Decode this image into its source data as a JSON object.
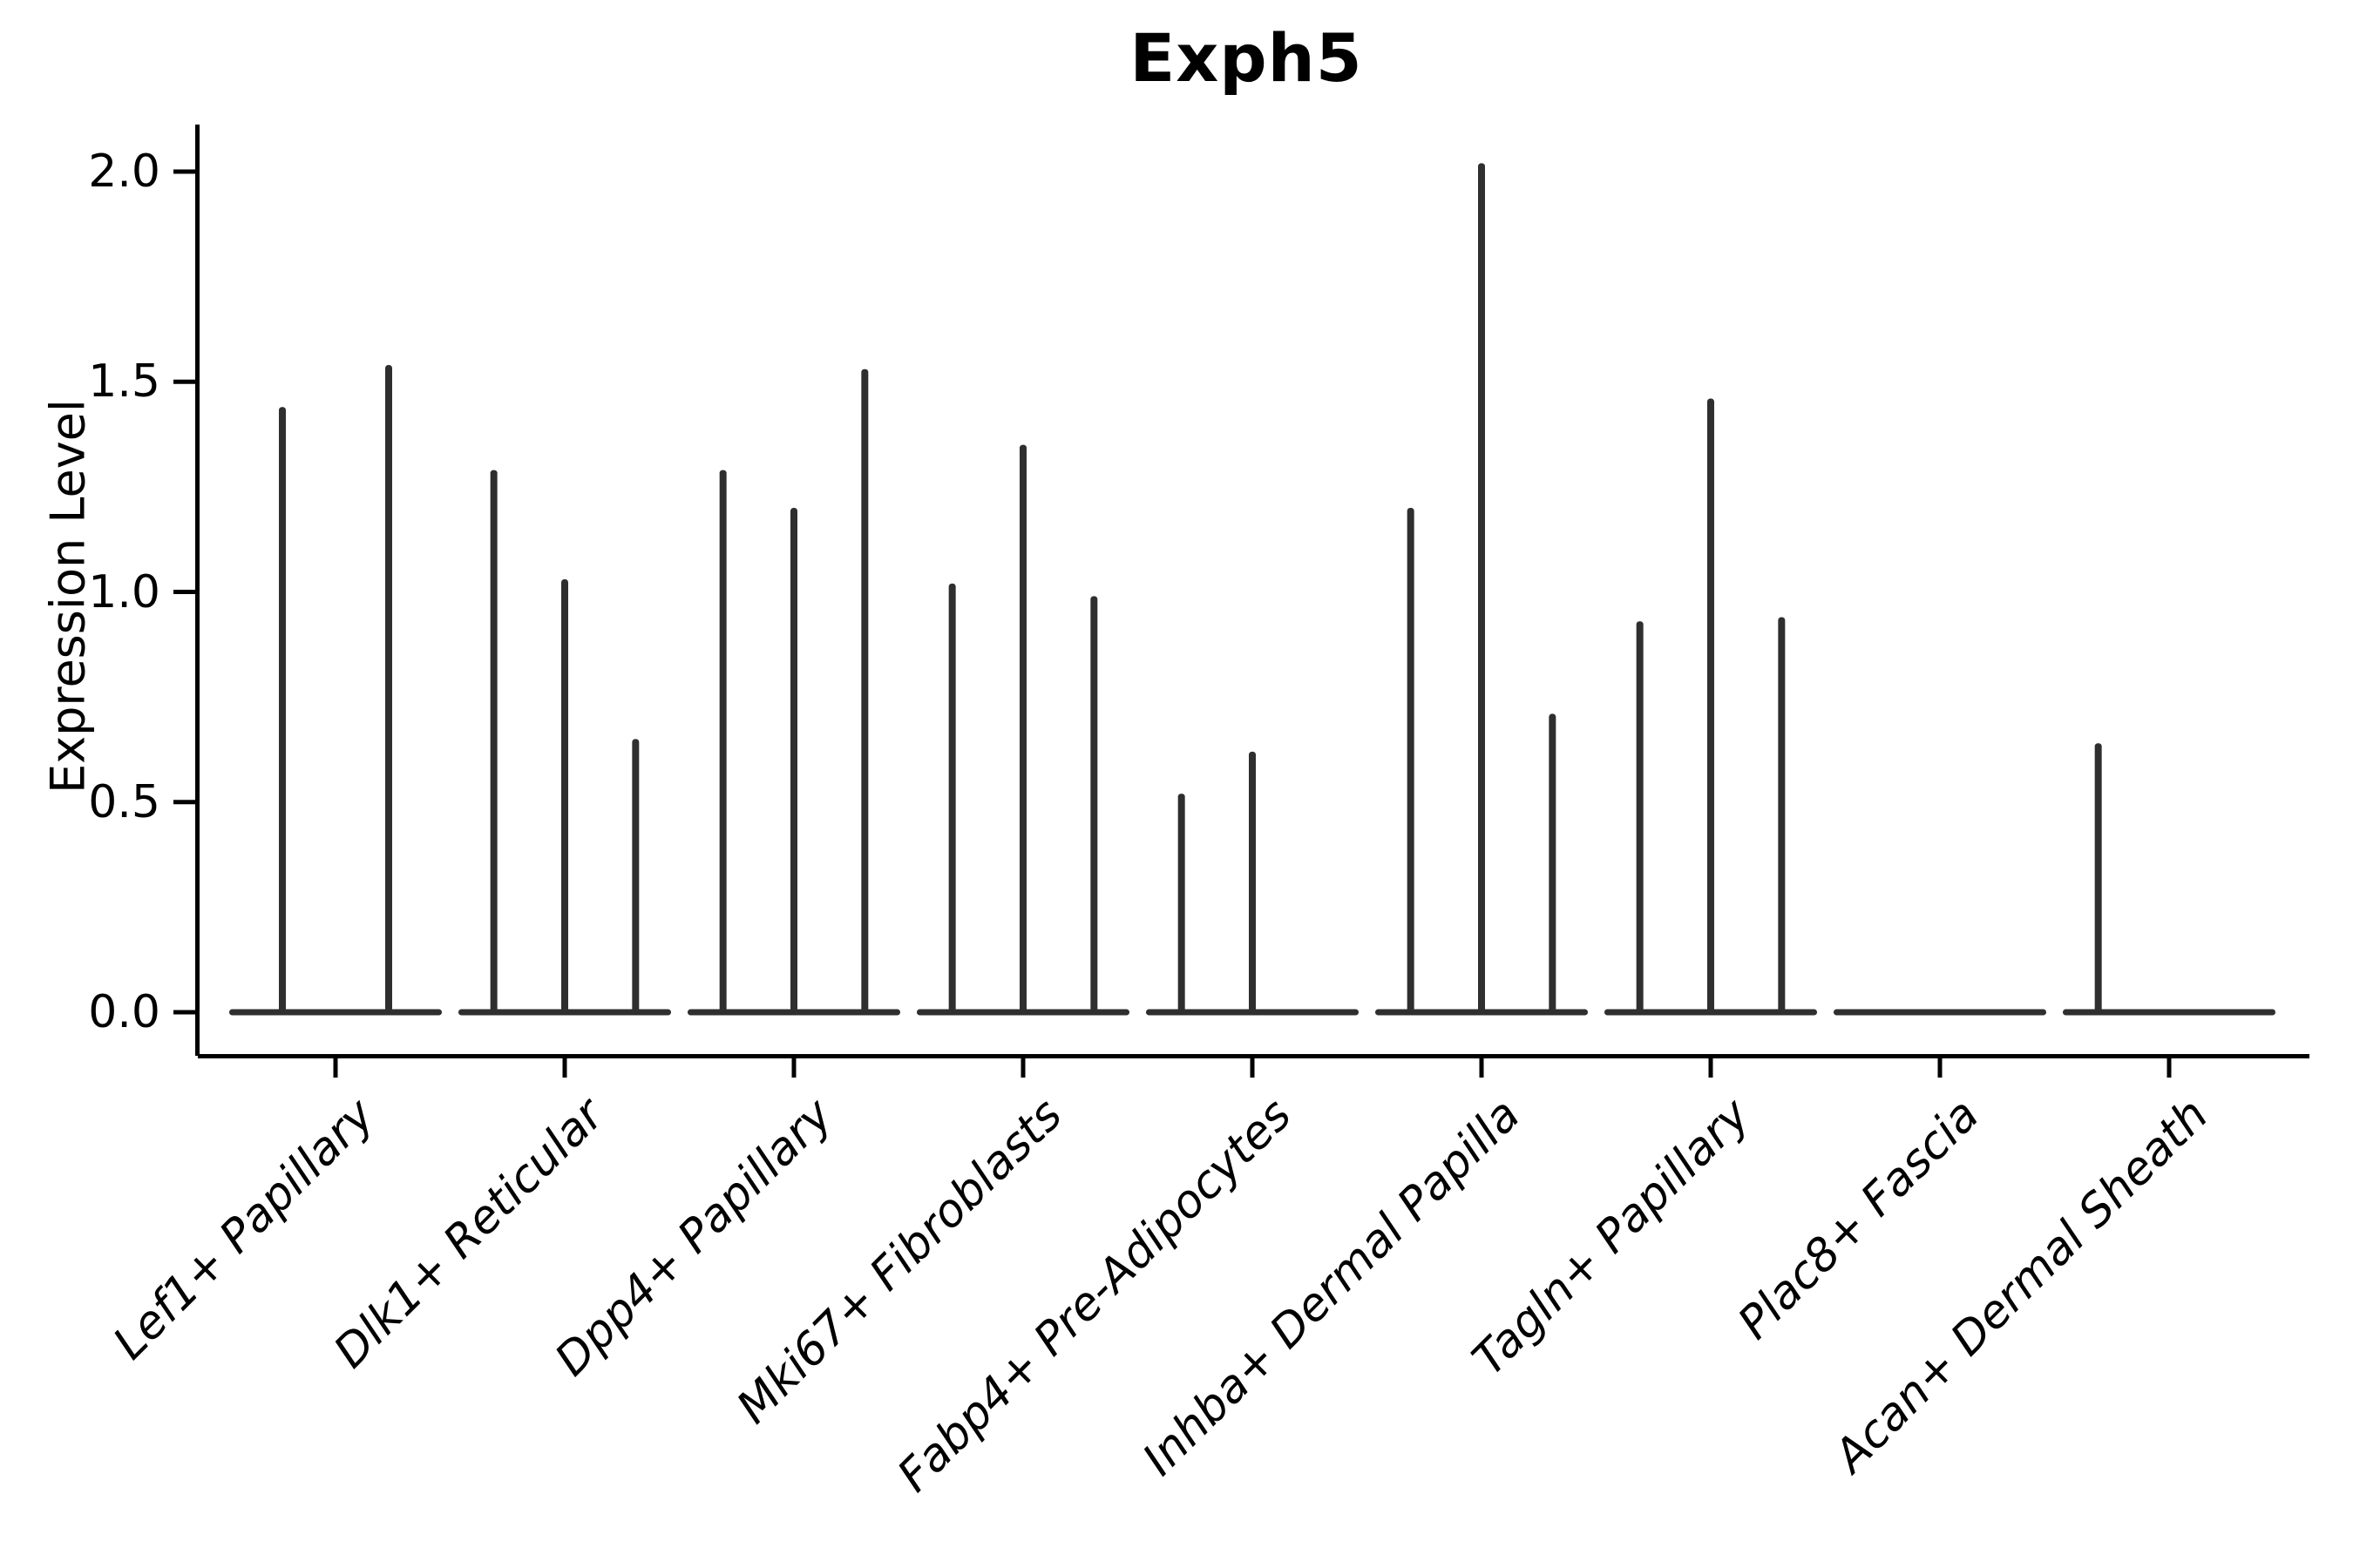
{
  "title": "Exph5",
  "chart_data": {
    "type": "violin",
    "title": "Exph5",
    "xlabel": "",
    "ylabel": "Expression Level",
    "ylim": [
      0.0,
      2.05
    ],
    "yticks": [
      0.0,
      0.5,
      1.0,
      1.5,
      2.0
    ],
    "ytick_labels": [
      "0.0",
      "0.5",
      "1.0",
      "1.5",
      "2.0"
    ],
    "grid": false,
    "legend_position": "none",
    "categories": [
      "Lef1+ Papillary",
      "Dlk1+ Reticular",
      "Dpp4+ Papillary",
      "Mki67+ Fibroblasts",
      "Fabp4+ Pre-Adipocytes",
      "Inhba+ Dermal Papilla",
      "Tagln+ Papillary",
      "Plac8+ Fascia",
      "Acan+ Dermal Sheath"
    ],
    "groups": [
      {
        "category": "Lef1+ Papillary",
        "violin_max_expression": [
          1.44,
          1.54
        ]
      },
      {
        "category": "Dlk1+ Reticular",
        "violin_max_expression": [
          1.29,
          1.03,
          0.65
        ]
      },
      {
        "category": "Dpp4+ Papillary",
        "violin_max_expression": [
          1.29,
          1.2,
          1.53
        ]
      },
      {
        "category": "Mki67+ Fibroblasts",
        "violin_max_expression": [
          1.02,
          1.35,
          0.99
        ]
      },
      {
        "category": "Fabp4+ Pre-Adipocytes",
        "violin_max_expression": [
          0.52,
          0.62,
          0.0
        ]
      },
      {
        "category": "Inhba+ Dermal Papilla",
        "violin_max_expression": [
          1.2,
          2.02,
          0.71
        ]
      },
      {
        "category": "Tagln+ Papillary",
        "violin_max_expression": [
          0.93,
          1.46,
          0.94
        ]
      },
      {
        "category": "Plac8+ Fascia",
        "violin_max_expression": [
          0.0,
          0.0,
          0.0
        ]
      },
      {
        "category": "Acan+ Dermal Sheath",
        "violin_max_expression": [
          0.64,
          0.0,
          0.0
        ]
      }
    ],
    "colors": {
      "violin": "#2f2f2f",
      "axis": "#000000",
      "text": "#000000",
      "background": "#ffffff"
    }
  }
}
